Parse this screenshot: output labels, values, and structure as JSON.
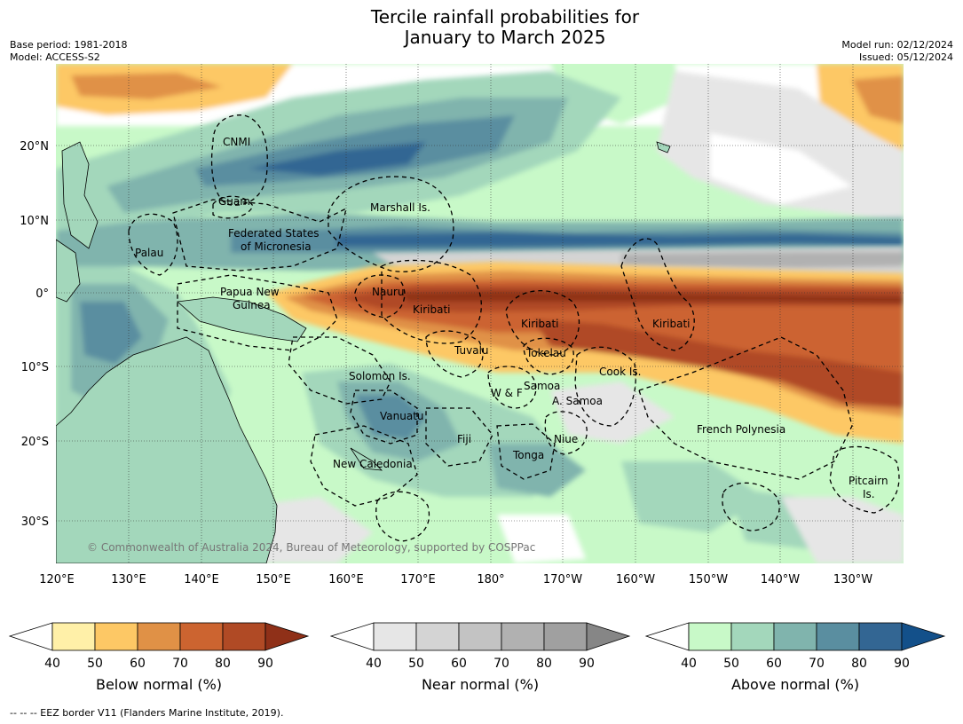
{
  "title_line1": "Tercile rainfall probabilities for",
  "title_line2": "January to March 2025",
  "base_period": "Base period: 1981-2018",
  "model": "Model: ACCESS-S2",
  "model_run": "Model run: 02/12/2024",
  "issued": "Issued: 05/12/2024",
  "copyright": "© Commonwealth of Australia 2024, Bureau of Meteorology, supported by COSPPac",
  "footer": "--  --  -- EEZ border V11 (Flanders Marine Institute, 2019).",
  "lat_ticks": [
    "20°N",
    "10°N",
    "0°",
    "10°S",
    "20°S",
    "30°S"
  ],
  "lon_ticks": [
    "120°E",
    "130°E",
    "140°E",
    "150°E",
    "160°E",
    "170°E",
    "180°",
    "170°W",
    "160°W",
    "150°W",
    "140°W",
    "130°W"
  ],
  "regions": [
    {
      "name": "CNMI"
    },
    {
      "name": "Guam"
    },
    {
      "name": "Marshall Is."
    },
    {
      "name": "Palau"
    },
    {
      "name": "Federated States"
    },
    {
      "name": "of Micronesia"
    },
    {
      "name": "Papua New"
    },
    {
      "name": "Guinea"
    },
    {
      "name": "Nauru"
    },
    {
      "name": "Kiribati"
    },
    {
      "name": "Kiribati"
    },
    {
      "name": "Kiribati"
    },
    {
      "name": "Tuvalu"
    },
    {
      "name": "Tokelau"
    },
    {
      "name": "Cook Is."
    },
    {
      "name": "Solomon Is."
    },
    {
      "name": "W & F"
    },
    {
      "name": "Samoa"
    },
    {
      "name": "A. Samoa"
    },
    {
      "name": "Vanuatu"
    },
    {
      "name": "Fiji"
    },
    {
      "name": "Niue"
    },
    {
      "name": "Tonga"
    },
    {
      "name": "French Polynesia"
    },
    {
      "name": "New Caledonia"
    },
    {
      "name": "Pitcairn"
    },
    {
      "name": "Is."
    }
  ],
  "colorbars": [
    {
      "label": "Below normal (%)",
      "ticks": [
        "40",
        "50",
        "60",
        "70",
        "80",
        "90"
      ],
      "colors": [
        "#fff0a8",
        "#fdc865",
        "#e09146",
        "#cc6430",
        "#b04a25",
        "#8f3018"
      ]
    },
    {
      "label": "Near normal (%)",
      "ticks": [
        "40",
        "50",
        "60",
        "70",
        "80",
        "90"
      ],
      "colors": [
        "#e6e6e6",
        "#d4d4d4",
        "#c3c3c3",
        "#b1b1b1",
        "#a0a0a0",
        "#868686"
      ]
    },
    {
      "label": "Above normal (%)",
      "ticks": [
        "40",
        "50",
        "60",
        "70",
        "80",
        "90"
      ],
      "colors": [
        "#c8f9c8",
        "#a3d7bb",
        "#80b4ad",
        "#5a8ea0",
        "#336693",
        "#13508a"
      ]
    }
  ]
}
